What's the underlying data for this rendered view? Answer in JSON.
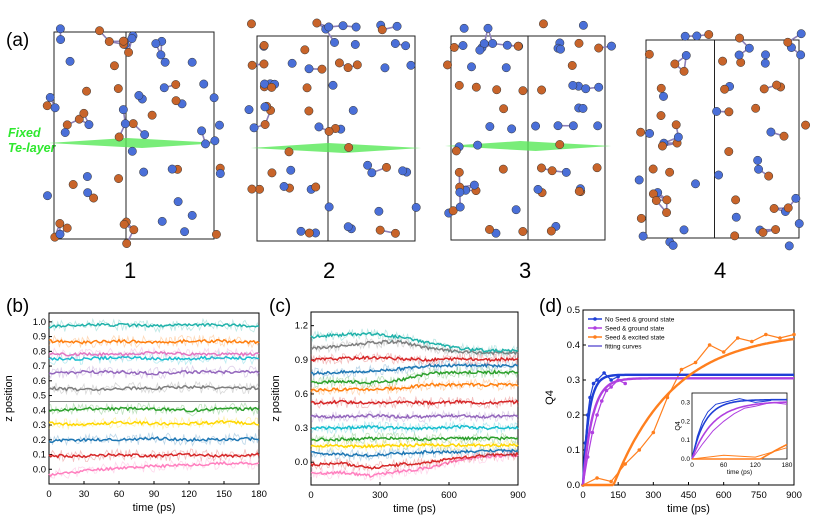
{
  "panels": {
    "a": {
      "label": "(a)",
      "fixed_label_1": "Fixed",
      "fixed_label_2": "Te-layer",
      "structures": [
        "1",
        "2",
        "3",
        "4"
      ]
    },
    "b": {
      "label": "(b)"
    },
    "c": {
      "label": "(c)"
    },
    "d": {
      "label": "(d)"
    }
  },
  "colors": {
    "atom_blue": "#4a6fd8",
    "atom_orange": "#c8642a",
    "plane_green": "#58e858"
  },
  "chart_data": [
    {
      "type": "line",
      "xlabel": "time (ps)",
      "ylabel": "z position",
      "xlim": [
        0,
        180
      ],
      "ylim": [
        -0.1,
        1.06
      ],
      "xticks": [
        "0",
        "30",
        "60",
        "90",
        "120",
        "150",
        "180"
      ],
      "yticks": [
        "0.0",
        "0.1",
        "0.2",
        "0.3",
        "0.4",
        "0.5",
        "0.6",
        "0.7",
        "0.8",
        "0.9",
        "1.0"
      ],
      "reference_line_y": 0.46,
      "series": [
        {
          "color": "#ff7fbf",
          "values": [
            -0.04,
            -0.01,
            0.01,
            0.02,
            0.03,
            0.04,
            0.04
          ]
        },
        {
          "color": "#d62728",
          "values": [
            0.09,
            0.09,
            0.1,
            0.09,
            0.1,
            0.09,
            0.1
          ]
        },
        {
          "color": "#1f77b4",
          "values": [
            0.19,
            0.2,
            0.2,
            0.21,
            0.2,
            0.2,
            0.21
          ]
        },
        {
          "color": "#ffd700",
          "values": [
            0.31,
            0.3,
            0.32,
            0.31,
            0.31,
            0.32,
            0.31
          ]
        },
        {
          "color": "#2ca02c",
          "values": [
            0.4,
            0.41,
            0.41,
            0.41,
            0.4,
            0.41,
            0.41
          ]
        },
        {
          "color": "#7f7f7f",
          "values": [
            0.55,
            0.54,
            0.55,
            0.55,
            0.56,
            0.55,
            0.55
          ]
        },
        {
          "color": "#9467bd",
          "values": [
            0.65,
            0.66,
            0.66,
            0.65,
            0.66,
            0.66,
            0.66
          ]
        },
        {
          "color": "#17becf",
          "values": [
            0.75,
            0.75,
            0.76,
            0.75,
            0.75,
            0.76,
            0.75
          ]
        },
        {
          "color": "#e377c2",
          "values": [
            0.78,
            0.78,
            0.78,
            0.79,
            0.78,
            0.78,
            0.78
          ]
        },
        {
          "color": "#ff7f0e",
          "values": [
            0.87,
            0.86,
            0.87,
            0.86,
            0.87,
            0.87,
            0.86
          ]
        },
        {
          "color": "#20b2aa",
          "values": [
            0.97,
            0.98,
            0.98,
            0.97,
            0.98,
            0.98,
            0.97
          ]
        }
      ]
    },
    {
      "type": "line",
      "xlabel": "time (ps)",
      "ylabel": "z position",
      "xlim": [
        0,
        900
      ],
      "ylim": [
        -0.2,
        1.32
      ],
      "xticks": [
        "0",
        "300",
        "600",
        "900"
      ],
      "yticks": [
        "0.0",
        "0.3",
        "0.6",
        "0.9",
        "1.2"
      ],
      "series": [
        {
          "color": "#ff7fbf",
          "values": [
            -0.1,
            -0.09,
            -0.12,
            -0.08,
            -0.05,
            0.02,
            0.05,
            0.06
          ]
        },
        {
          "color": "#d62728",
          "values": [
            -0.02,
            -0.01,
            -0.05,
            -0.02,
            0.0,
            0.04,
            0.06,
            0.07
          ]
        },
        {
          "color": "#1f77b4",
          "values": [
            0.08,
            0.07,
            0.06,
            0.08,
            0.09,
            0.09,
            0.1,
            0.1
          ]
        },
        {
          "color": "#2ca02c",
          "values": [
            0.2,
            0.2,
            0.21,
            0.21,
            0.2,
            0.21,
            0.21,
            0.21
          ]
        },
        {
          "color": "#ffd700",
          "values": [
            0.15,
            0.14,
            0.14,
            0.15,
            0.15,
            0.15,
            0.15,
            0.15
          ]
        },
        {
          "color": "#17becf",
          "values": [
            0.3,
            0.3,
            0.31,
            0.3,
            0.3,
            0.31,
            0.3,
            0.3
          ]
        },
        {
          "color": "#9467bd",
          "values": [
            0.4,
            0.4,
            0.41,
            0.4,
            0.4,
            0.41,
            0.4,
            0.41
          ]
        },
        {
          "color": "#d62728",
          "values": [
            0.52,
            0.53,
            0.52,
            0.53,
            0.52,
            0.53,
            0.52,
            0.53
          ]
        },
        {
          "color": "#ff7f0e",
          "values": [
            0.63,
            0.64,
            0.64,
            0.65,
            0.68,
            0.68,
            0.68,
            0.68
          ]
        },
        {
          "color": "#2ca02c",
          "values": [
            0.7,
            0.71,
            0.7,
            0.72,
            0.78,
            0.79,
            0.79,
            0.79
          ]
        },
        {
          "color": "#1f77b4",
          "values": [
            0.78,
            0.79,
            0.8,
            0.82,
            0.85,
            0.85,
            0.85,
            0.85
          ]
        },
        {
          "color": "#d62728",
          "values": [
            0.9,
            0.91,
            0.92,
            0.91,
            0.9,
            0.91,
            0.9,
            0.91
          ]
        },
        {
          "color": "#7f7f7f",
          "values": [
            1.0,
            1.02,
            1.05,
            1.06,
            1.0,
            0.97,
            0.96,
            0.96
          ]
        },
        {
          "color": "#20b2aa",
          "values": [
            1.1,
            1.12,
            1.13,
            1.1,
            1.05,
            1.0,
            0.98,
            0.98
          ]
        }
      ]
    },
    {
      "type": "line",
      "xlabel": "time (ps)",
      "ylabel": "Q4",
      "xlim": [
        0,
        900
      ],
      "ylim": [
        0,
        0.5
      ],
      "xticks": [
        "0",
        "150",
        "300",
        "450",
        "600",
        "750",
        "900"
      ],
      "yticks": [
        "0.0",
        "0.1",
        "0.2",
        "0.3",
        "0.4",
        "0.5"
      ],
      "legend": [
        "No Seed & ground state",
        "Seed & ground state",
        "Seed & excited state",
        "fitting curves"
      ],
      "legend_colors": [
        "#1f3fd6",
        "#b040e0",
        "#ff7f1e",
        "#6b5fd6"
      ],
      "series": [
        {
          "name": "No Seed & ground state",
          "color": "#1f3fd6",
          "x": [
            0,
            10,
            20,
            30,
            45,
            60,
            90,
            120,
            150
          ],
          "values": [
            0.0,
            0.12,
            0.2,
            0.25,
            0.29,
            0.3,
            0.32,
            0.3,
            0.31
          ]
        },
        {
          "name": "Seed & ground state",
          "color": "#b040e0",
          "x": [
            0,
            20,
            40,
            60,
            80,
            100,
            120,
            150,
            180
          ],
          "values": [
            0.0,
            0.08,
            0.15,
            0.2,
            0.24,
            0.27,
            0.28,
            0.3,
            0.29
          ]
        },
        {
          "name": "Seed & excited state",
          "color": "#ff7f1e",
          "x": [
            0,
            60,
            120,
            180,
            240,
            300,
            360,
            420,
            480,
            540,
            600,
            660,
            720,
            780,
            840,
            900
          ],
          "values": [
            0.0,
            0.02,
            0.01,
            0.06,
            0.1,
            0.15,
            0.25,
            0.33,
            0.35,
            0.4,
            0.38,
            0.42,
            0.41,
            0.43,
            0.42,
            0.43
          ]
        }
      ],
      "fits": [
        {
          "color": "#1f3fd6",
          "asymptote": 0.315,
          "tau": 25
        },
        {
          "color": "#b040e0",
          "asymptote": 0.305,
          "tau": 40
        },
        {
          "color": "#ff7f1e",
          "asymptote": 0.44,
          "tau": 260,
          "delay": 130
        }
      ],
      "inset": {
        "xlabel": "time (ps)",
        "ylabel": "Q4",
        "xlim": [
          0,
          180
        ],
        "ylim": [
          0,
          0.35
        ],
        "xticks": [
          "0",
          "60",
          "120",
          "180"
        ],
        "yticks": [
          "0.0",
          "0.1",
          "0.2",
          "0.3"
        ]
      }
    }
  ]
}
